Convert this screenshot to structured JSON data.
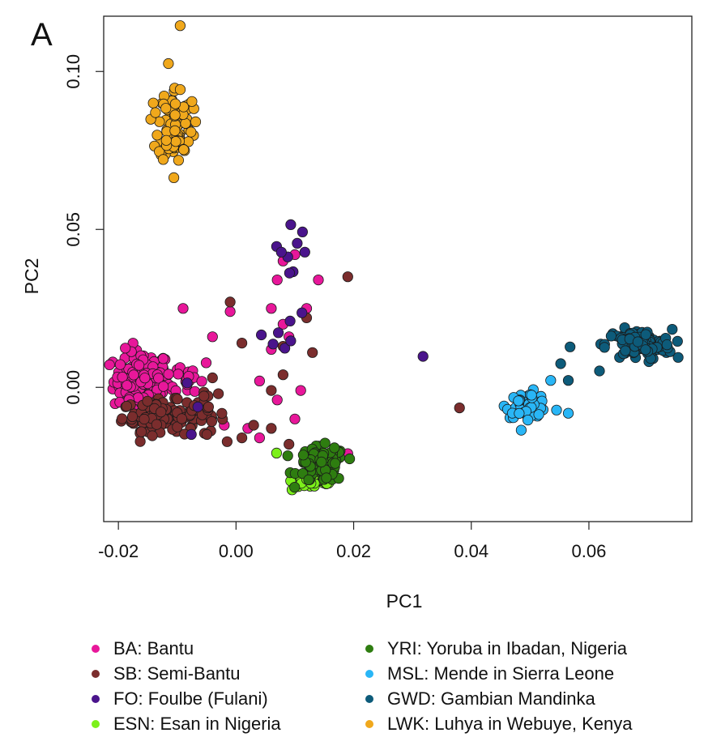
{
  "panel_label": "A",
  "chart_data": {
    "type": "scatter",
    "title": "",
    "xlabel": "PC1",
    "ylabel": "PC2",
    "xlim": [
      -0.0225,
      0.0775
    ],
    "ylim": [
      -0.0425,
      0.1175
    ],
    "x_ticks": [
      -0.02,
      0.0,
      0.02,
      0.04,
      0.06
    ],
    "x_tick_labels": [
      "-0.02",
      "0.00",
      "0.02",
      "0.04",
      "0.06"
    ],
    "y_ticks": [
      0.0,
      0.05,
      0.1
    ],
    "y_tick_labels": [
      "0.00",
      "0.05",
      "0.10"
    ],
    "grid": false,
    "legend_placement": "bottom",
    "series": [
      {
        "name": "BA: Bantu",
        "color": "#e8179a",
        "clusters": [
          {
            "center": [
              -0.016,
              0.002
            ],
            "spread": [
              0.003,
              0.006
            ],
            "n": 150
          },
          {
            "center": [
              -0.008,
              0.003
            ],
            "spread": [
              0.0025,
              0.004
            ],
            "n": 20
          }
        ],
        "points": [
          [
            -0.009,
            0.025
          ],
          [
            -0.004,
            0.016
          ],
          [
            -0.001,
            0.024
          ],
          [
            0.004,
            0.002
          ],
          [
            0.007,
            0.034
          ],
          [
            0.008,
            0.04
          ],
          [
            0.006,
            0.025
          ],
          [
            0.01,
            0.042
          ],
          [
            0.014,
            0.034
          ],
          [
            0.012,
            0.025
          ],
          [
            0.006,
            0.012
          ],
          [
            0.009,
            0.016
          ],
          [
            0.011,
            -0.001
          ],
          [
            0.007,
            -0.004
          ],
          [
            0.01,
            -0.01
          ],
          [
            0.002,
            -0.013
          ],
          [
            -0.002,
            -0.012
          ],
          [
            0.004,
            -0.016
          ],
          [
            0.019,
            -0.021
          ],
          [
            0.008,
            0.02
          ]
        ]
      },
      {
        "name": "SB: Semi-Bantu",
        "color": "#7b2d2d",
        "clusters": [
          {
            "center": [
              -0.013,
              -0.009
            ],
            "spread": [
              0.004,
              0.003
            ],
            "n": 130
          },
          {
            "center": [
              -0.006,
              -0.009
            ],
            "spread": [
              0.0025,
              0.004
            ],
            "n": 25
          }
        ],
        "points": [
          [
            -0.004,
            0.003
          ],
          [
            -0.001,
            0.027
          ],
          [
            0.001,
            0.014
          ],
          [
            0.003,
            -0.012
          ],
          [
            0.006,
            -0.013
          ],
          [
            0.008,
            0.013
          ],
          [
            0.009,
            -0.018
          ],
          [
            0.012,
            0.022
          ],
          [
            0.013,
            0.011
          ],
          [
            0.019,
            0.035
          ],
          [
            0.008,
            0.004
          ],
          [
            0.006,
            -0.001
          ],
          [
            0.001,
            -0.016
          ],
          [
            -0.003,
            -0.002
          ],
          [
            0.038,
            -0.0065
          ]
        ]
      },
      {
        "name": "FO: Foulbe (Fulani)",
        "color": "#4a148c",
        "clusters": [],
        "points": [
          [
            0.0093,
            0.0515
          ],
          [
            0.0113,
            0.0492
          ],
          [
            0.0069,
            0.0446
          ],
          [
            0.0104,
            0.0456
          ],
          [
            0.0088,
            0.0413
          ],
          [
            0.0117,
            0.0428
          ],
          [
            0.0077,
            0.0428
          ],
          [
            0.0097,
            0.0366
          ],
          [
            0.0091,
            0.0362
          ],
          [
            0.0043,
            0.0166
          ],
          [
            0.0092,
            0.021
          ],
          [
            0.0063,
            0.0137
          ],
          [
            0.0083,
            0.0124
          ],
          [
            0.0112,
            0.0236
          ],
          [
            0.0072,
            0.0173
          ],
          [
            0.0093,
            0.0147
          ],
          [
            -0.0083,
            0.0014
          ],
          [
            -0.0065,
            -0.0062
          ],
          [
            -0.0076,
            -0.0149
          ],
          [
            0.0318,
            0.0098
          ]
        ]
      },
      {
        "name": "ESN: Esan in Nigeria",
        "color": "#7cf01a",
        "clusters": [
          {
            "center": [
              0.0135,
              -0.0295
            ],
            "spread": [
              0.0025,
              0.002
            ],
            "n": 50
          }
        ],
        "points": [
          [
            0.0069,
            -0.0208
          ]
        ]
      },
      {
        "name": "YRI: Yoruba in Ibadan, Nigeria",
        "color": "#2e7d10",
        "clusters": [
          {
            "center": [
              0.0145,
              -0.0245
            ],
            "spread": [
              0.0025,
              0.0035
            ],
            "n": 95
          }
        ],
        "points": []
      },
      {
        "name": "MSL: Mende in Sierra Leone",
        "color": "#29b6f6",
        "clusters": [
          {
            "center": [
              0.0495,
              -0.0055
            ],
            "spread": [
              0.0022,
              0.0025
            ],
            "n": 55
          }
        ],
        "points": [
          [
            0.0545,
            -0.0072
          ],
          [
            0.0565,
            -0.0082
          ],
          [
            0.0535,
            0.0022
          ]
        ]
      },
      {
        "name": "GWD: Gambian Mandinka",
        "color": "#0d5b7a",
        "clusters": [
          {
            "center": [
              0.0685,
              0.0135
            ],
            "spread": [
              0.0035,
              0.003
            ],
            "n": 110
          }
        ],
        "points": [
          [
            0.0565,
            0.0022
          ],
          [
            0.0568,
            0.0128
          ],
          [
            0.0552,
            0.0075
          ],
          [
            0.0618,
            0.0052
          ]
        ]
      },
      {
        "name": "LWK: Luhya in Webuye, Kenya",
        "color": "#f0a81c",
        "clusters": [
          {
            "center": [
              -0.0103,
              0.0835
            ],
            "spread": [
              0.0018,
              0.0075
            ],
            "n": 95
          }
        ],
        "points": [
          [
            -0.0095,
            0.1145
          ],
          [
            -0.0115,
            0.1025
          ],
          [
            -0.0137,
            0.087
          ],
          [
            -0.0075,
            0.0905
          ]
        ]
      }
    ]
  }
}
